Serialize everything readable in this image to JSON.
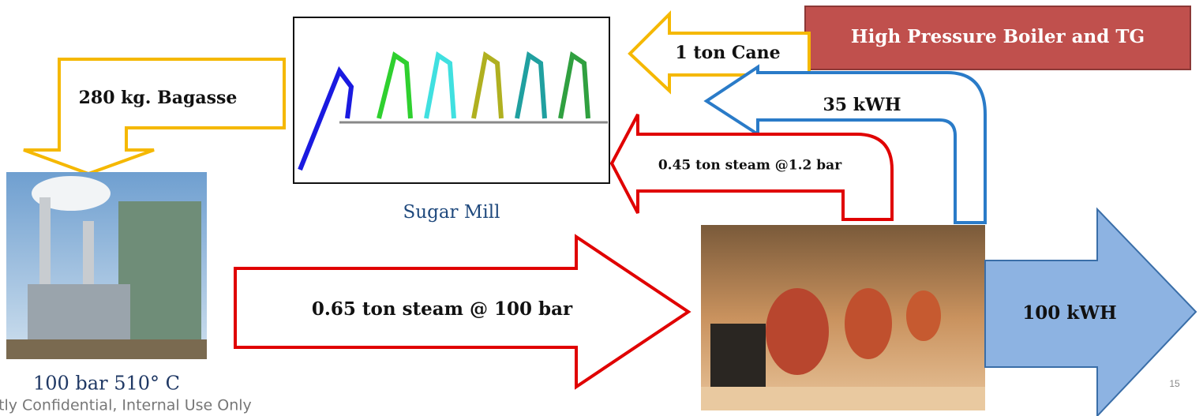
{
  "title_box": "High Pressure Boiler and TG",
  "arrows": {
    "cane": "1 ton Cane",
    "bagasse": "280 kg. Bagasse",
    "power_to_mill": "35 kWH",
    "low_steam": "0.45 ton steam @1.2 bar",
    "high_steam": "0.65 ton steam @ 100 bar",
    "power_out": "100 kWH"
  },
  "labels": {
    "sugar_mill": "Sugar Mill",
    "boiler": "100 bar 510° C"
  },
  "footer": "tly Confidential, Internal Use Only",
  "page_number": "15"
}
